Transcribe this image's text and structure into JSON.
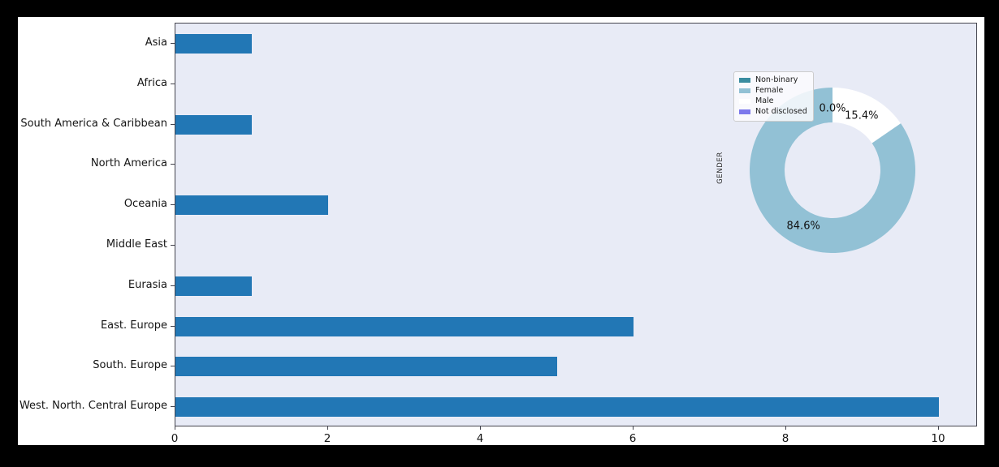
{
  "colors": {
    "canvas_bg": "#000000",
    "figure_bg": "#ffffff",
    "plot_bg": "#e8ebf6",
    "axis_border": "#44444e",
    "bar_color": "#2277b5",
    "text_color": "#151515"
  },
  "chart_data": [
    {
      "type": "bar",
      "orientation": "horizontal",
      "categories": [
        "Asia",
        "Africa",
        "South America & Caribbean",
        "North America",
        "Oceania",
        "Middle East",
        "Eurasia",
        "East. Europe",
        "South. Europe",
        "West. North. Central Europe"
      ],
      "values": [
        1,
        0,
        1,
        0,
        2,
        0,
        1,
        6,
        5,
        10
      ],
      "xlabel": "",
      "ylabel": "",
      "xlim": [
        0,
        10.5
      ],
      "x_tick_values": [
        0,
        2,
        4,
        6,
        8,
        10
      ],
      "x_tick_labels": [
        "0",
        "2",
        "4",
        "6",
        "8",
        "10"
      ],
      "grid": false,
      "bar_color": "#2277b5",
      "plot_bg": "#e8ebf6"
    },
    {
      "type": "pie",
      "donut": true,
      "title": "GENDER",
      "start_angle": 90,
      "direction": "counterclockwise",
      "slices": [
        {
          "label": "Non-binary",
          "value": 0.0,
          "pct_text": "0.0%",
          "color": "#3a8ca0"
        },
        {
          "label": "Female",
          "value": 84.6,
          "pct_text": "84.6%",
          "color": "#92c1d5"
        },
        {
          "label": "Male",
          "value": 15.4,
          "pct_text": "15.4%",
          "color": "#ffffff"
        },
        {
          "label": "Not disclosed",
          "value": 0.0,
          "pct_text": "",
          "color": "#7d79ec"
        }
      ],
      "legend_position": "upper-left"
    }
  ]
}
